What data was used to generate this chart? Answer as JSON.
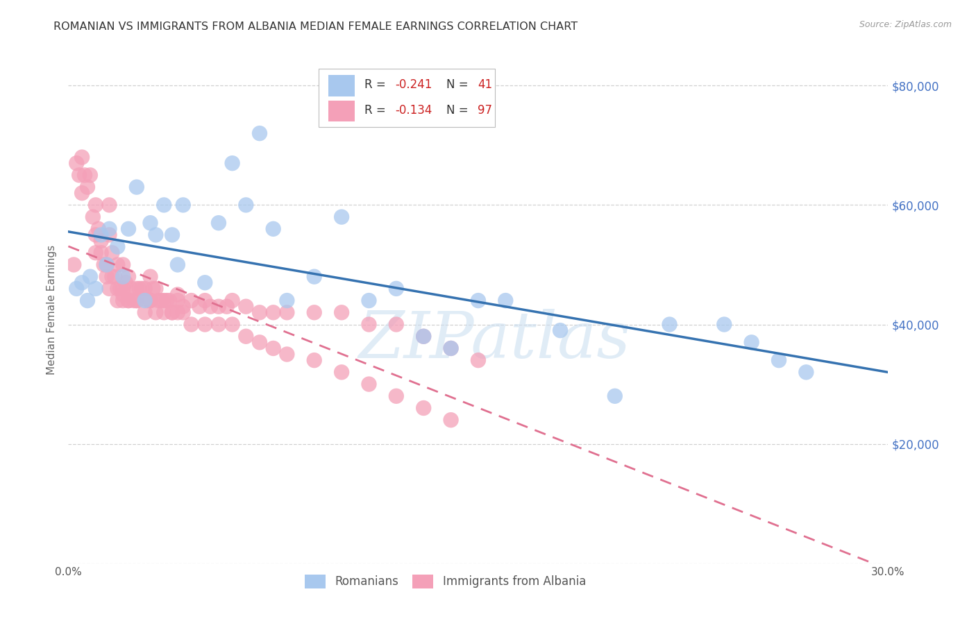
{
  "title": "ROMANIAN VS IMMIGRANTS FROM ALBANIA MEDIAN FEMALE EARNINGS CORRELATION CHART",
  "source": "Source: ZipAtlas.com",
  "ylabel": "Median Female Earnings",
  "y_ticks": [
    0,
    20000,
    40000,
    60000,
    80000
  ],
  "y_tick_labels": [
    "",
    "$20,000",
    "$40,000",
    "$60,000",
    "$80,000"
  ],
  "x_min": 0.0,
  "x_max": 30.0,
  "y_min": 0,
  "y_max": 85000,
  "romanians_R": -0.241,
  "romanians_N": 41,
  "albania_R": -0.134,
  "albania_N": 97,
  "blue_color": "#a8c8ee",
  "pink_color": "#f4a0b8",
  "blue_line_color": "#3572b0",
  "pink_line_color": "#e07090",
  "title_color": "#333333",
  "axis_label_color": "#666666",
  "right_axis_color": "#4472c4",
  "watermark": "ZIPatlas",
  "grid_color": "#cccccc",
  "legend_text_dark": "#333333",
  "legend_value_color": "#cc2222",
  "romanians_x": [
    0.3,
    0.5,
    0.7,
    0.8,
    1.0,
    1.2,
    1.4,
    1.5,
    1.8,
    2.0,
    2.2,
    2.5,
    2.8,
    3.0,
    3.2,
    3.5,
    3.8,
    4.0,
    4.2,
    5.0,
    5.5,
    6.0,
    6.5,
    7.0,
    7.5,
    8.0,
    9.0,
    10.0,
    11.0,
    12.0,
    13.0,
    14.0,
    15.0,
    16.0,
    18.0,
    20.0,
    22.0,
    24.0,
    25.0,
    26.0,
    27.0
  ],
  "romanians_y": [
    46000,
    47000,
    44000,
    48000,
    46000,
    55000,
    50000,
    56000,
    53000,
    48000,
    56000,
    63000,
    44000,
    57000,
    55000,
    60000,
    55000,
    50000,
    60000,
    47000,
    57000,
    67000,
    60000,
    72000,
    56000,
    44000,
    48000,
    58000,
    44000,
    46000,
    38000,
    36000,
    44000,
    44000,
    39000,
    28000,
    40000,
    40000,
    37000,
    34000,
    32000
  ],
  "albania_x": [
    0.2,
    0.3,
    0.4,
    0.5,
    0.5,
    0.6,
    0.7,
    0.8,
    0.9,
    1.0,
    1.0,
    1.0,
    1.1,
    1.2,
    1.2,
    1.3,
    1.4,
    1.4,
    1.5,
    1.5,
    1.6,
    1.6,
    1.7,
    1.8,
    1.8,
    1.9,
    2.0,
    2.0,
    2.0,
    2.1,
    2.2,
    2.2,
    2.3,
    2.4,
    2.5,
    2.5,
    2.6,
    2.7,
    2.8,
    2.9,
    3.0,
    3.0,
    3.1,
    3.2,
    3.3,
    3.4,
    3.5,
    3.6,
    3.7,
    3.8,
    4.0,
    4.0,
    4.2,
    4.5,
    4.8,
    5.0,
    5.2,
    5.5,
    5.8,
    6.0,
    6.5,
    7.0,
    7.5,
    8.0,
    9.0,
    10.0,
    11.0,
    12.0,
    13.0,
    14.0,
    15.0,
    1.5,
    1.8,
    2.0,
    2.2,
    2.5,
    2.8,
    3.0,
    3.2,
    3.5,
    3.8,
    4.0,
    4.2,
    4.5,
    5.0,
    5.5,
    6.0,
    6.5,
    7.0,
    7.5,
    8.0,
    9.0,
    10.0,
    11.0,
    12.0,
    13.0,
    14.0
  ],
  "albania_y": [
    50000,
    67000,
    65000,
    62000,
    68000,
    65000,
    63000,
    65000,
    58000,
    60000,
    55000,
    52000,
    56000,
    54000,
    52000,
    50000,
    50000,
    48000,
    60000,
    55000,
    52000,
    48000,
    48000,
    50000,
    46000,
    46000,
    50000,
    46000,
    44000,
    47000,
    48000,
    44000,
    46000,
    44000,
    46000,
    44000,
    46000,
    46000,
    46000,
    44000,
    48000,
    44000,
    46000,
    46000,
    44000,
    44000,
    44000,
    44000,
    44000,
    42000,
    45000,
    44000,
    43000,
    44000,
    43000,
    44000,
    43000,
    43000,
    43000,
    44000,
    43000,
    42000,
    42000,
    42000,
    42000,
    42000,
    40000,
    40000,
    38000,
    36000,
    34000,
    46000,
    44000,
    45000,
    44000,
    44000,
    42000,
    44000,
    42000,
    42000,
    42000,
    42000,
    42000,
    40000,
    40000,
    40000,
    40000,
    38000,
    37000,
    36000,
    35000,
    34000,
    32000,
    30000,
    28000,
    26000,
    24000
  ]
}
